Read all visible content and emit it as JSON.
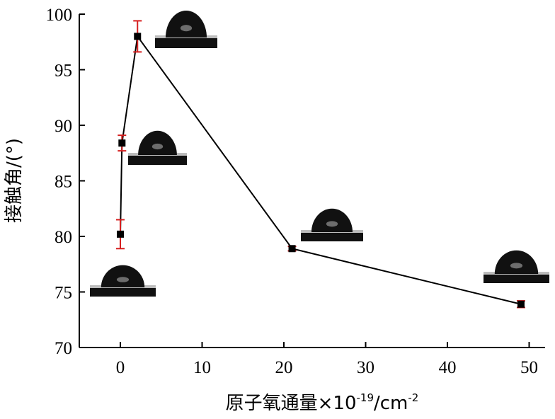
{
  "chart_data": {
    "type": "line",
    "xlabel": {
      "main": "原子氧通量×10",
      "exp1": "-19",
      "mid": "/cm",
      "exp2": "-2"
    },
    "ylabel": "接触角/(°)",
    "xlim": [
      -5,
      52
    ],
    "ylim": [
      70,
      100
    ],
    "xticks": [
      0,
      10,
      20,
      30,
      40,
      50
    ],
    "yticks": [
      70,
      75,
      80,
      85,
      90,
      95,
      100
    ],
    "grid": false,
    "series": [
      {
        "x": [
          0,
          0.2,
          2.1,
          21,
          49
        ],
        "y": [
          80.2,
          88.4,
          98.0,
          78.9,
          73.9
        ],
        "err": [
          1.3,
          0.7,
          1.4,
          0.2,
          0.3
        ]
      }
    ],
    "colors": {
      "line": "#000000",
      "marker": "#000000",
      "error_bar": "#d61f1f",
      "droplet": "#111111"
    },
    "insets": [
      {
        "name": "droplet-inset-0",
        "depicts": "water droplet on substrate"
      },
      {
        "name": "droplet-inset-1",
        "depicts": "water droplet on substrate"
      },
      {
        "name": "droplet-inset-2",
        "depicts": "water droplet on substrate"
      },
      {
        "name": "droplet-inset-3",
        "depicts": "water droplet on substrate"
      },
      {
        "name": "droplet-inset-4",
        "depicts": "water droplet on substrate"
      }
    ]
  }
}
